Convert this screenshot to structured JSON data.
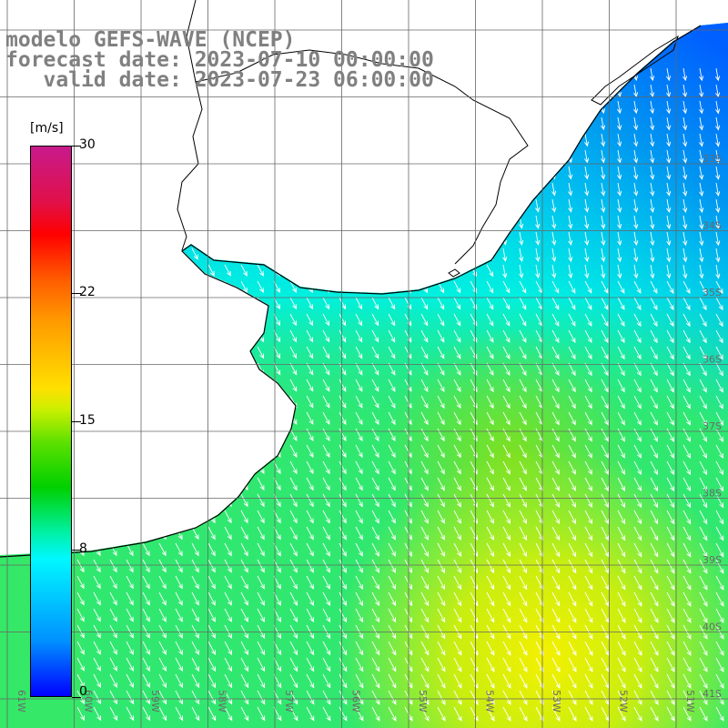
{
  "title": {
    "line1": "modelo GEFS-WAVE (NCEP)",
    "line2": "forecast date: 2023-07-10 00:00:00",
    "line3": "   valid date: 2023-07-23 06:00:00"
  },
  "colorbar": {
    "unit": "[m/s]",
    "ticks": [
      {
        "label": "30",
        "value": 30
      },
      {
        "label": "22",
        "value": 22
      },
      {
        "label": "15",
        "value": 15
      },
      {
        "label": "8",
        "value": 8
      },
      {
        "label": "0",
        "value": 0
      }
    ],
    "range": [
      0,
      30
    ]
  },
  "map": {
    "longitude_labels": [
      "61W",
      "60W",
      "59W",
      "58W",
      "57W",
      "56W",
      "55W",
      "54W",
      "53W",
      "52W",
      "51W"
    ],
    "latitude_labels": [
      "33S",
      "34S",
      "35S",
      "36S",
      "37S",
      "38S",
      "39S",
      "40S",
      "41S"
    ],
    "wind_direction": "from northwest (arrows pointing southeast)",
    "colors": {
      "coast": "#000000",
      "land": "#ffffff",
      "grid": "#666666",
      "arrow": "#ffffff"
    }
  }
}
